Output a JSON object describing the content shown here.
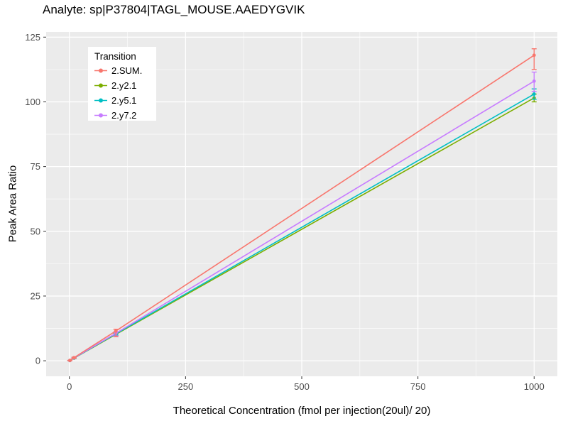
{
  "page": {
    "title": "Analyte: sp|P37804|TAGL_MOUSE.AAEDYGVIK"
  },
  "chart_data": {
    "type": "line",
    "title": "Analyte: sp|P37804|TAGL_MOUSE.AAEDYGVIK",
    "xlabel": "Theoretical Concentration (fmol per injection(20ul)/ 20)",
    "ylabel": "Peak Area Ratio",
    "xlim": [
      -50,
      1050
    ],
    "ylim": [
      -6,
      127
    ],
    "x_ticks": [
      0,
      250,
      500,
      750,
      1000
    ],
    "y_ticks": [
      0,
      25,
      50,
      75,
      100,
      125
    ],
    "x_minor_ticks": [
      125,
      375,
      625,
      875
    ],
    "y_minor_ticks": [
      12.5,
      37.5,
      62.5,
      87.5,
      112.5
    ],
    "grid": true,
    "panel_bg": "#EBEBEB",
    "grid_color": "#FFFFFF",
    "tick_color": "#333333",
    "tick_label_color": "#4D4D4D",
    "legend_title": "Transition",
    "legend_position": "top-left-inside",
    "x": [
      1,
      10,
      100,
      1000
    ],
    "series": [
      {
        "name": "2.SUM.",
        "color": "#F8766D",
        "values": [
          0.12,
          1.2,
          11.5,
          118.0
        ],
        "err_low": [
          0.1,
          1.0,
          9.3,
          112.5
        ],
        "err_high": [
          0.15,
          1.4,
          12.2,
          120.5
        ]
      },
      {
        "name": "2.y2.1",
        "color": "#7CAE00",
        "values": [
          0.1,
          1.0,
          10.2,
          101.5
        ],
        "err_low": [
          0.08,
          0.9,
          9.8,
          100.0
        ],
        "err_high": [
          0.12,
          1.1,
          10.6,
          103.0
        ]
      },
      {
        "name": "2.y5.1",
        "color": "#00BFC4",
        "values": [
          0.1,
          1.05,
          10.4,
          103.0
        ],
        "err_low": [
          0.08,
          0.95,
          10.0,
          101.0
        ],
        "err_high": [
          0.12,
          1.15,
          10.8,
          105.0
        ]
      },
      {
        "name": "2.y7.2",
        "color": "#C77CFF",
        "values": [
          0.1,
          1.1,
          10.6,
          108.0
        ],
        "err_low": [
          0.08,
          1.0,
          9.6,
          104.0
        ],
        "err_high": [
          0.12,
          1.2,
          11.2,
          111.5
        ]
      }
    ]
  }
}
